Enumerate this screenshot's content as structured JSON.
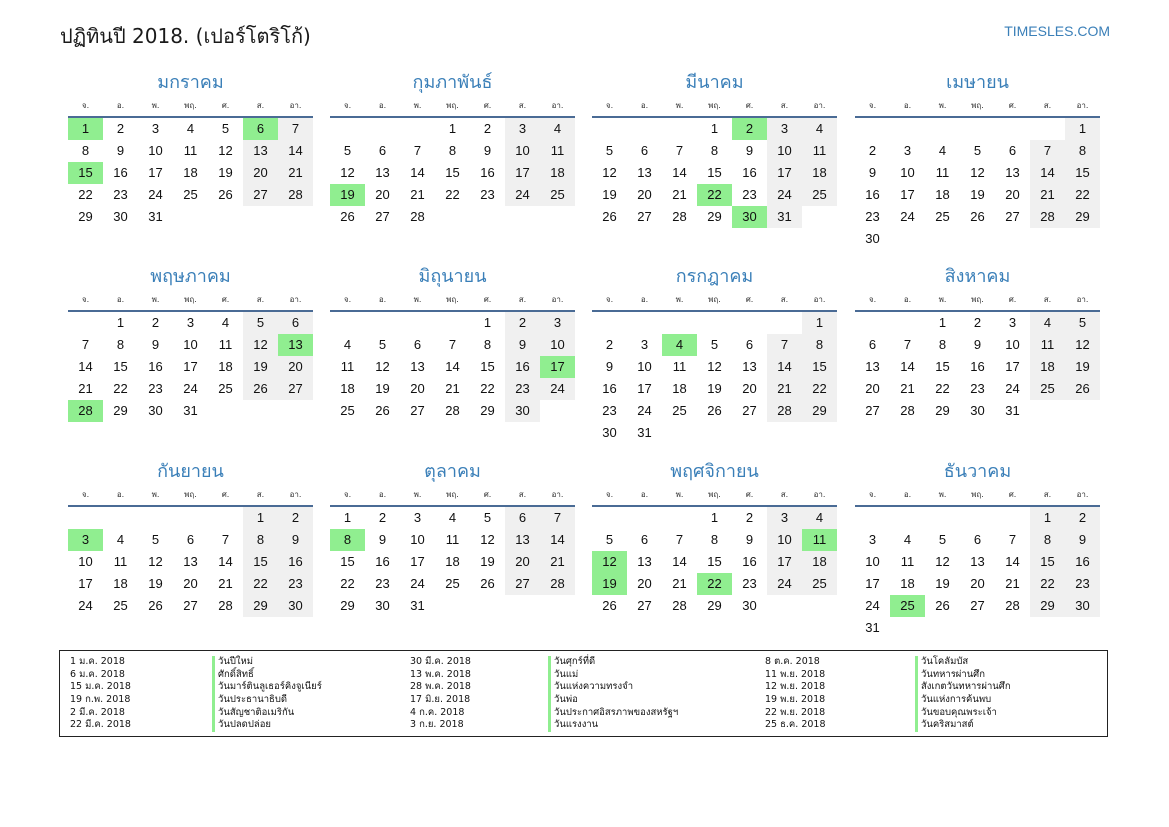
{
  "title": "ปฏิทินปี 2018. (เปอร์โตริโก้)",
  "site": "TIMESLES.COM",
  "colors": {
    "accent": "#3a7fb8",
    "holiday": "#90ee90",
    "weekend": "#f0f0f0",
    "rule": "#4a6b95"
  },
  "weekdays": [
    "จ.",
    "อ.",
    "พ.",
    "พฤ.",
    "ศ.",
    "ส.",
    "อา."
  ],
  "months": [
    {
      "name": "มกราคม",
      "first_weekday": 0,
      "days": 31,
      "holidays": [
        1,
        6,
        15
      ]
    },
    {
      "name": "กุมภาพันธ์",
      "first_weekday": 3,
      "days": 28,
      "holidays": [
        19
      ]
    },
    {
      "name": "มีนาคม",
      "first_weekday": 3,
      "days": 31,
      "holidays": [
        2,
        22,
        30
      ]
    },
    {
      "name": "เมษายน",
      "first_weekday": 6,
      "days": 30,
      "holidays": []
    },
    {
      "name": "พฤษภาคม",
      "first_weekday": 1,
      "days": 31,
      "holidays": [
        13,
        28
      ]
    },
    {
      "name": "มิถุนายน",
      "first_weekday": 4,
      "days": 30,
      "holidays": [
        17
      ]
    },
    {
      "name": "กรกฎาคม",
      "first_weekday": 6,
      "days": 31,
      "holidays": [
        4
      ]
    },
    {
      "name": "สิงหาคม",
      "first_weekday": 2,
      "days": 31,
      "holidays": []
    },
    {
      "name": "กันยายน",
      "first_weekday": 5,
      "days": 30,
      "holidays": [
        3
      ]
    },
    {
      "name": "ตุลาคม",
      "first_weekday": 0,
      "days": 31,
      "holidays": [
        8
      ]
    },
    {
      "name": "พฤศจิกายน",
      "first_weekday": 3,
      "days": 30,
      "holidays": [
        11,
        12,
        19,
        22
      ]
    },
    {
      "name": "ธันวาคม",
      "first_weekday": 5,
      "days": 31,
      "holidays": [
        25
      ]
    }
  ],
  "holiday_list": [
    [
      {
        "date": "1 ม.ค. 2018",
        "name": "วันปีใหม่"
      },
      {
        "date": "6 ม.ค. 2018",
        "name": "ศักดิ์สิทธิ์"
      },
      {
        "date": "15 ม.ค. 2018",
        "name": "วันมาร์ตินลูเธอร์คิงจูเนียร์"
      },
      {
        "date": "19 ก.พ. 2018",
        "name": "วันประธานาธิบดี"
      },
      {
        "date": "2 มี.ค. 2018",
        "name": "วันสัญชาติอเมริกัน"
      },
      {
        "date": "22 มี.ค. 2018",
        "name": "วันปลดปล่อย"
      }
    ],
    [
      {
        "date": "30 มี.ค. 2018",
        "name": "วันศุกร์ที่ดี"
      },
      {
        "date": "13 พ.ค. 2018",
        "name": "วันแม่"
      },
      {
        "date": "28 พ.ค. 2018",
        "name": "วันแห่งความทรงจำ"
      },
      {
        "date": "17 มิ.ย. 2018",
        "name": "วันพ่อ"
      },
      {
        "date": "4 ก.ค. 2018",
        "name": "วันประกาศอิสรภาพของสหรัฐฯ"
      },
      {
        "date": "3 ก.ย. 2018",
        "name": "วันแรงงาน"
      }
    ],
    [
      {
        "date": "8 ต.ค. 2018",
        "name": "วันโคลัมบัส"
      },
      {
        "date": "11 พ.ย. 2018",
        "name": "วันทหารผ่านศึก"
      },
      {
        "date": "12 พ.ย. 2018",
        "name": "สังเกตวันทหารผ่านศึก"
      },
      {
        "date": "19 พ.ย. 2018",
        "name": "วันแห่งการค้นพบ"
      },
      {
        "date": "22 พ.ย. 2018",
        "name": "วันขอบคุณพระเจ้า"
      },
      {
        "date": "25 ธ.ค. 2018",
        "name": "วันคริสมาสต์"
      }
    ]
  ]
}
